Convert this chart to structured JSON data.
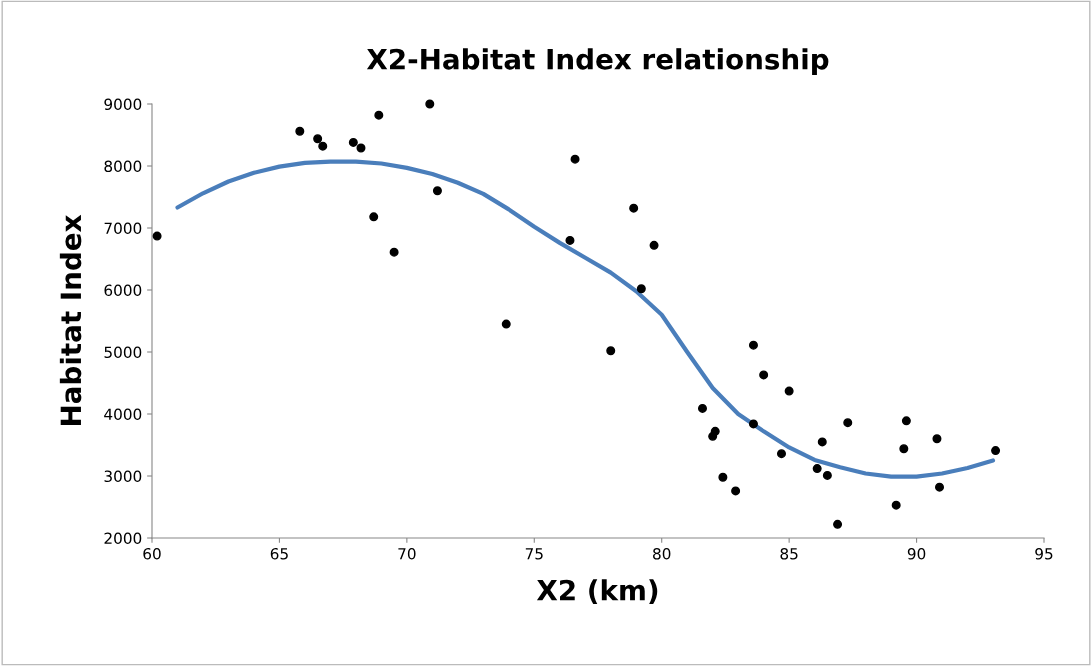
{
  "chart_data": {
    "type": "scatter",
    "title": "X2-Habitat Index relationship",
    "xlabel": "X2 (km)",
    "ylabel": "Habitat Index",
    "xlim": [
      60,
      95
    ],
    "xticks": [
      60,
      65,
      70,
      75,
      80,
      85,
      90,
      95
    ],
    "ylim": [
      2000,
      9000
    ],
    "yticks": [
      2000,
      3000,
      4000,
      5000,
      6000,
      7000,
      8000,
      9000
    ],
    "grid": false,
    "legend": false,
    "series": [
      {
        "color": "#000000",
        "marker": "circle",
        "x": [
          60.2,
          65.8,
          66.5,
          66.7,
          67.9,
          68.2,
          68.7,
          68.9,
          69.5,
          70.9,
          71.2,
          73.9,
          76.4,
          76.6,
          78.0,
          78.9,
          79.2,
          79.7,
          81.6,
          82.0,
          82.1,
          82.4,
          82.9,
          83.6,
          83.6,
          84.0,
          84.7,
          85.0,
          86.1,
          86.3,
          86.5,
          86.9,
          87.3,
          89.2,
          89.5,
          89.6,
          90.8,
          90.9,
          93.1
        ],
        "values": [
          6870,
          8560,
          8440,
          8320,
          8380,
          8290,
          7180,
          8820,
          6610,
          9000,
          7600,
          5450,
          6800,
          8110,
          5020,
          7320,
          6020,
          6720,
          4090,
          3640,
          3720,
          2980,
          2760,
          5110,
          3840,
          4630,
          3360,
          4370,
          3120,
          3550,
          3010,
          2220,
          3860,
          2530,
          3440,
          3890,
          3600,
          2820,
          3410
        ]
      },
      {
        "type": "line",
        "color": "#4a7ebb",
        "marker": "none",
        "line_style": "solid",
        "x": [
          61,
          62,
          63,
          64,
          65,
          66,
          67,
          68,
          69,
          70,
          71,
          72,
          73,
          74,
          75,
          76,
          77,
          78,
          79,
          80,
          81,
          82,
          83,
          84,
          85,
          86,
          87,
          88,
          89,
          90,
          91,
          92,
          93
        ],
        "values": [
          7330,
          7560,
          7750,
          7890,
          7990,
          8050,
          8070,
          8070,
          8040,
          7970,
          7870,
          7730,
          7550,
          7300,
          7020,
          6760,
          6520,
          6280,
          5980,
          5600,
          5000,
          4420,
          4000,
          3720,
          3460,
          3260,
          3140,
          3040,
          2990,
          2990,
          3040,
          3130,
          3250
        ]
      }
    ]
  }
}
